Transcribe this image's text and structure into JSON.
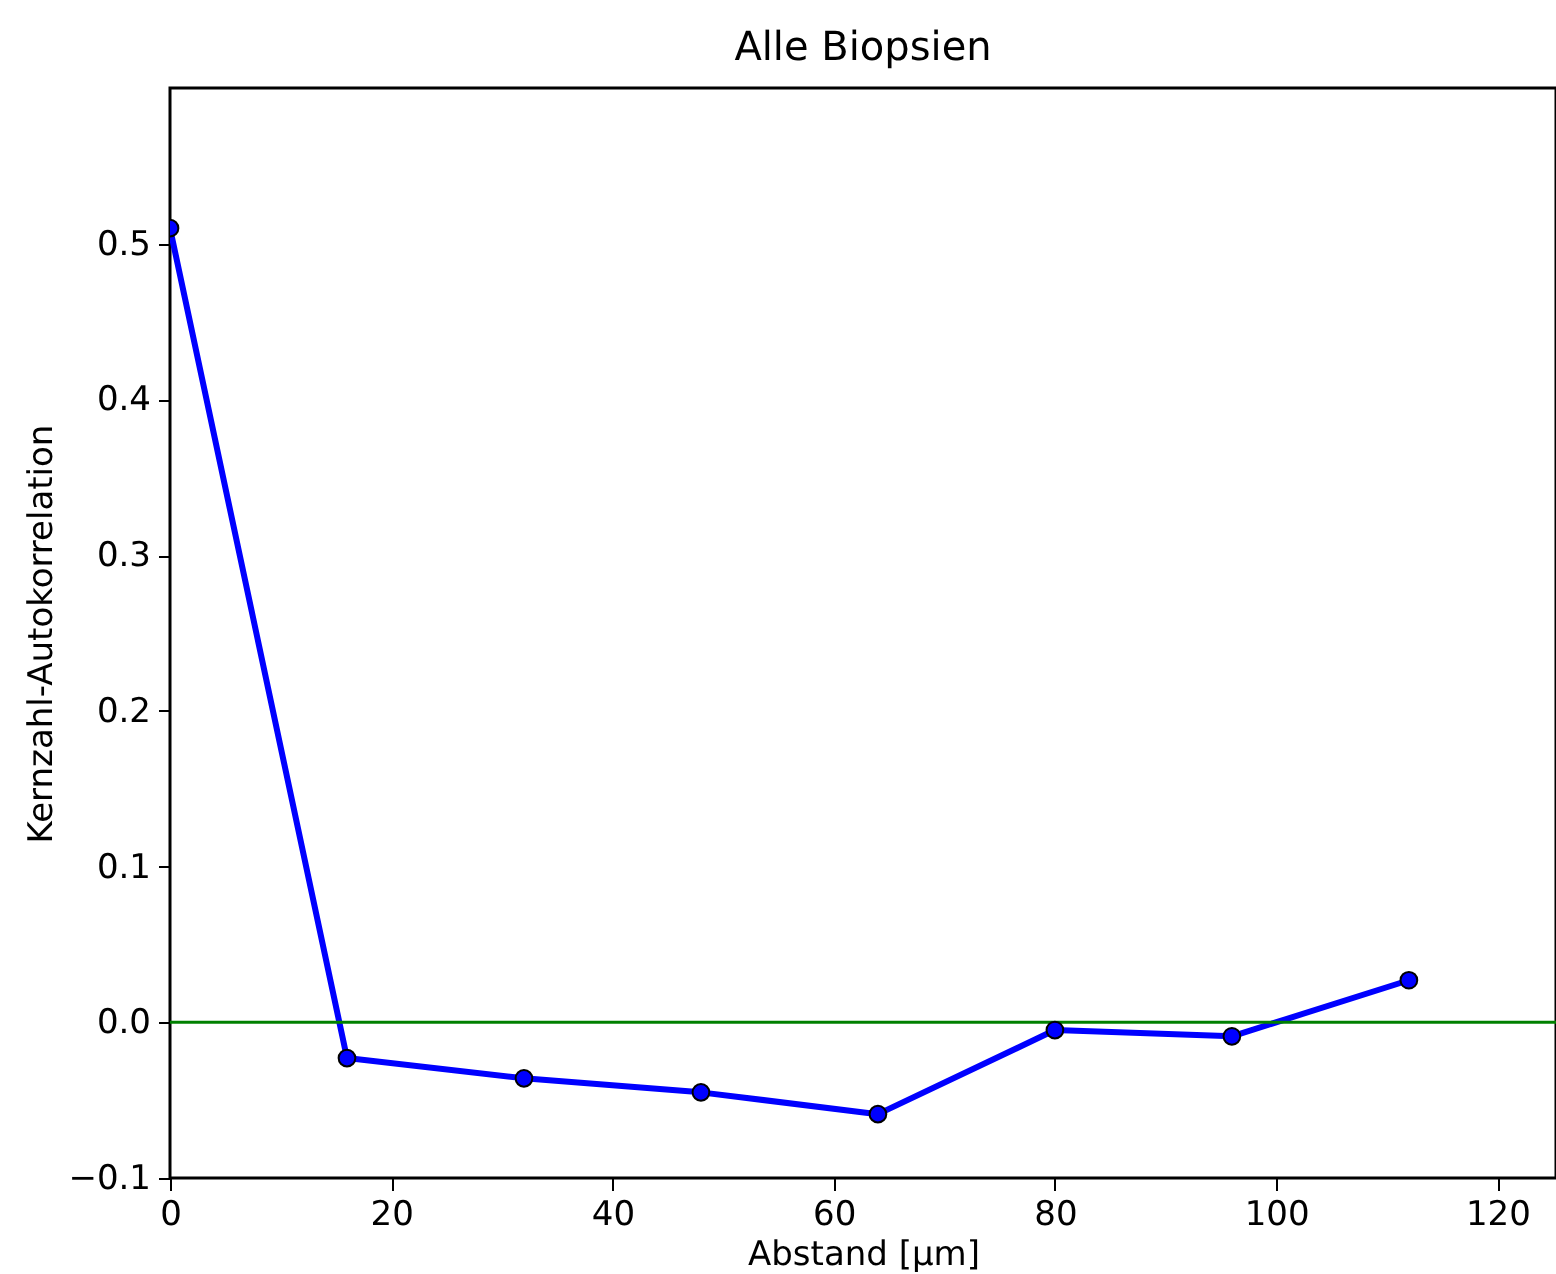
{
  "chart_data": {
    "type": "line",
    "title": "Alle Biopsien",
    "xlabel": "Abstand [μm]",
    "ylabel": "Kernzahl-Autokorrelation",
    "x": [
      0,
      16,
      32,
      48,
      64,
      80,
      96,
      112
    ],
    "series": [
      {
        "color": "#0000ff",
        "values": [
          0.51,
          -0.023,
          -0.036,
          -0.045,
          -0.059,
          -0.005,
          -0.009,
          0.027
        ]
      }
    ],
    "xlim": [
      0,
      125.3
    ],
    "xticks": [
      0,
      20,
      40,
      60,
      80,
      100,
      120
    ],
    "ylim": [
      -0.1,
      0.6
    ],
    "yticks": [
      -0.1,
      {
        "value": 0,
        "label": "0.0"
      },
      0.1,
      0.2,
      0.3,
      0.4,
      0.5
    ],
    "ref_lines": [
      {
        "axis": "y",
        "value": 0,
        "color": "#008000"
      }
    ],
    "marker": "circle",
    "line_style": "solid",
    "grid": false
  }
}
